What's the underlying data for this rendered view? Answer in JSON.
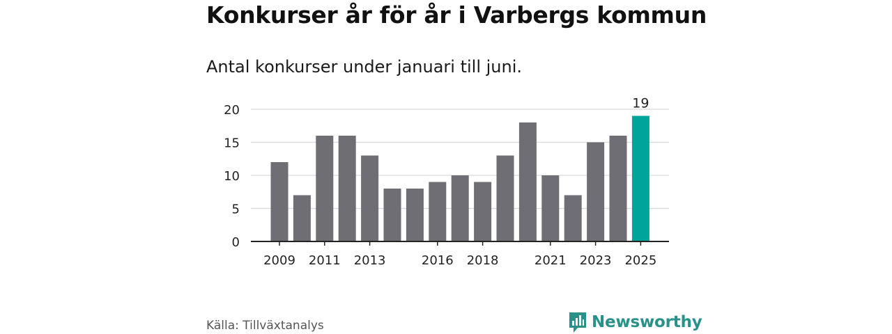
{
  "chart_data": {
    "type": "bar",
    "title": "Konkurser år för år i Varbergs kommun",
    "subtitle": "Antal konkurser under januari till juni.",
    "categories": [
      "2009",
      "2010",
      "2011",
      "2012",
      "2013",
      "2014",
      "2015",
      "2016",
      "2017",
      "2018",
      "2019",
      "2020",
      "2021",
      "2022",
      "2023",
      "2024",
      "2025"
    ],
    "values": [
      12,
      7,
      16,
      16,
      13,
      8,
      8,
      9,
      10,
      9,
      13,
      18,
      10,
      7,
      15,
      16,
      19
    ],
    "x_tick_labels": [
      "2009",
      "2011",
      "2013",
      "2016",
      "2018",
      "2021",
      "2023",
      "2025"
    ],
    "y_ticks": [
      0,
      5,
      10,
      15,
      20
    ],
    "ylim": [
      0,
      20
    ],
    "grid": true,
    "highlight": {
      "category": "2025",
      "label": "19"
    },
    "colors": {
      "bar": "#6f6e74",
      "highlight": "#00a498",
      "grid": "#d9d9d9",
      "axis": "#222222"
    }
  },
  "footer": {
    "source": "Källa: Tillväxtanalys",
    "brand": "Newsworthy",
    "brand_icon": "bar-chart-speech-bubble-icon",
    "brand_color": "#27918a"
  }
}
